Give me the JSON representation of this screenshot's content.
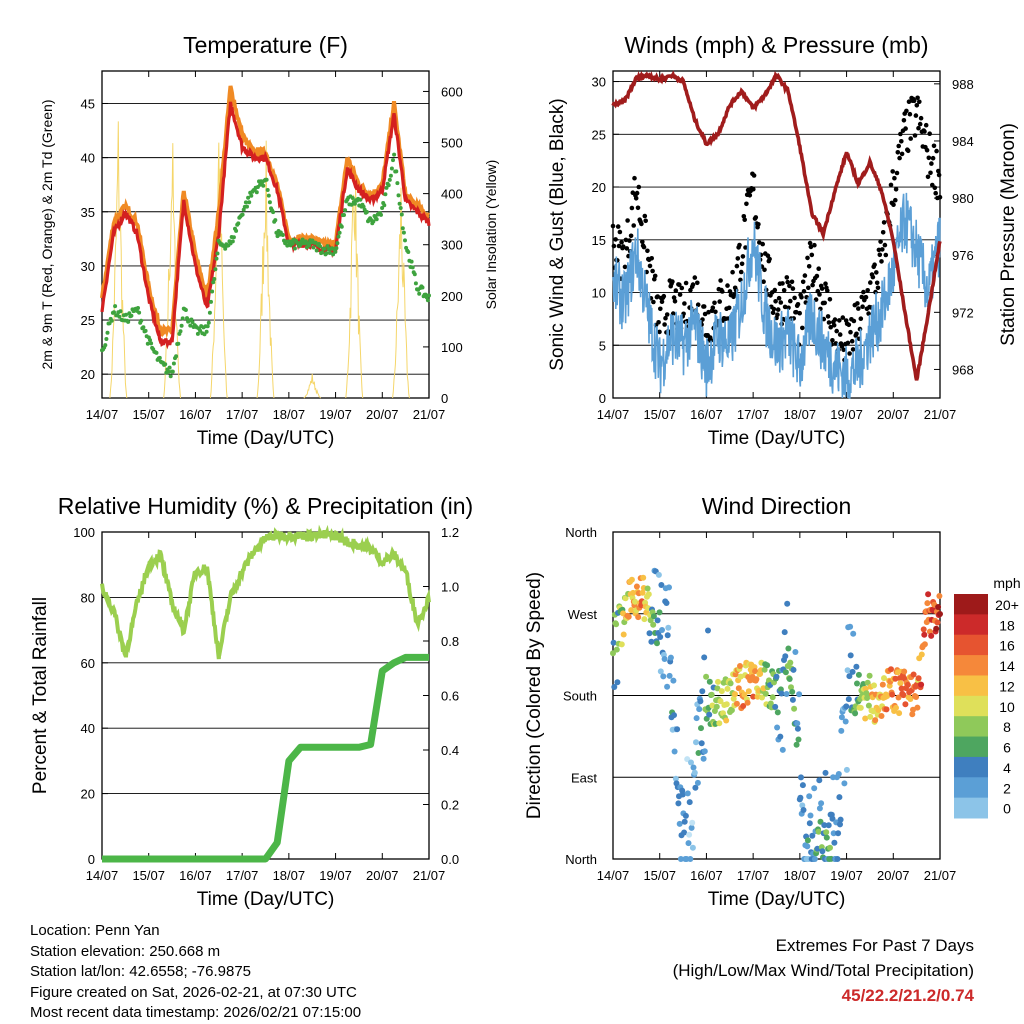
{
  "x_ticks": [
    "14/07",
    "15/07",
    "16/07",
    "17/07",
    "18/07",
    "19/07",
    "20/07",
    "21/07"
  ],
  "charts": {
    "temperature": {
      "title": "Temperature (F)",
      "xlabel": "Time (Day/UTC)",
      "ylabel_left": "2m & 9m T (Red, Orange) & 2m Td (Green)",
      "ylabel_right": "Solar Insolation (Yellow)",
      "left_ticks": [
        "20",
        "25",
        "30",
        "35",
        "40",
        "45"
      ],
      "right_ticks": [
        "0",
        "100",
        "200",
        "300",
        "400",
        "500",
        "600"
      ]
    },
    "winds": {
      "title": "Winds (mph) & Pressure (mb)",
      "xlabel": "Time (Day/UTC)",
      "ylabel_left": "Sonic Wind & Gust (Blue, Black)",
      "ylabel_right": "Station Pressure (Maroon)",
      "left_ticks": [
        "0",
        "5",
        "10",
        "15",
        "20",
        "25",
        "30"
      ],
      "right_ticks": [
        "968",
        "972",
        "976",
        "980",
        "984",
        "988"
      ]
    },
    "humidity": {
      "title": "Relative Humidity (%) & Precipitation (in)",
      "xlabel": "Time (Day/UTC)",
      "ylabel_left": "Percent & Total Rainfall",
      "left_ticks": [
        "0",
        "20",
        "40",
        "60",
        "80",
        "100"
      ],
      "right_ticks": [
        "0.0",
        "0.2",
        "0.4",
        "0.6",
        "0.8",
        "1.0",
        "1.2"
      ]
    },
    "direction": {
      "title": "Wind Direction",
      "xlabel": "Time (Day/UTC)",
      "ylabel_left": "Direction (Colored By Speed)",
      "dir_ticks": [
        "North",
        "East",
        "South",
        "West",
        "North"
      ],
      "legend_title": "mph",
      "legend_labels": [
        "20+",
        "18",
        "16",
        "14",
        "12",
        "10",
        "8",
        "6",
        "4",
        "2",
        "0"
      ]
    }
  },
  "colors": {
    "temp_2m": "#d42020",
    "temp_9m": "#f08a24",
    "dewpoint": "#3ea33e",
    "solar": "#f5d66a",
    "wind": "#5b9fd6",
    "gust": "#000000",
    "pressure": "#a01c1c",
    "rh": "#9bcf4f",
    "rain": "#4cb648",
    "extremes": "#cc2a2a",
    "speed_scale": [
      "#c2e3f5",
      "#8cc4e8",
      "#5b9fd6",
      "#3f7fbf",
      "#4ea660",
      "#8fc95a",
      "#dfe05a",
      "#f8c045",
      "#f5883a",
      "#e65430",
      "#cc2a2a",
      "#9e1a1a"
    ]
  },
  "footer": {
    "location": "Location: Penn Yan",
    "elevation": "Station elevation: 250.668 m",
    "latlon": "Station lat/lon: 42.6558; -76.9875",
    "created": "Figure created on Sat, 2026-02-21, at 07:30 UTC",
    "recent": "Most recent data timestamp: 2026/02/21 07:15:00",
    "extremes_title": "Extremes For Past 7 Days",
    "extremes_sub": "(High/Low/Max Wind/Total Precipitation)",
    "extremes_values": "45/22.2/21.2/0.74"
  },
  "chart_data": [
    {
      "type": "line",
      "title": "Temperature (F)",
      "xlabel": "Time (Day/UTC)",
      "ylabel": "2m & 9m T (Red, Orange) & 2m Td (Green)",
      "y2label": "Solar Insolation (Yellow)",
      "xlim": [
        0,
        7
      ],
      "ylim": [
        17.8,
        48
      ],
      "y2lim": [
        0,
        640
      ],
      "x": [
        0.0,
        0.25,
        0.5,
        0.75,
        1.0,
        1.25,
        1.5,
        1.75,
        2.0,
        2.25,
        2.5,
        2.75,
        3.0,
        3.25,
        3.5,
        3.75,
        4.0,
        4.25,
        4.5,
        4.75,
        5.0,
        5.25,
        5.5,
        5.75,
        6.0,
        6.25,
        6.5,
        6.75,
        7.0
      ],
      "series": [
        {
          "name": "2m T",
          "values": [
            26,
            33,
            35,
            33,
            27,
            23,
            23,
            36,
            30,
            26,
            33,
            45,
            41,
            40,
            40,
            37,
            32,
            32,
            32,
            31.5,
            31.5,
            39,
            37,
            36,
            37,
            44,
            36,
            35,
            34
          ]
        },
        {
          "name": "9m T",
          "values": [
            27,
            34,
            35.5,
            34,
            28,
            24,
            24,
            37,
            31,
            27,
            35,
            46.5,
            42,
            40.5,
            40.5,
            37.5,
            32.5,
            32.5,
            32.5,
            32,
            32,
            40,
            37.5,
            36.5,
            37.5,
            45,
            36.5,
            35.5,
            34.5
          ]
        },
        {
          "name": "2m Td",
          "values": [
            22,
            26,
            25,
            26,
            23,
            21,
            20,
            26,
            24,
            24,
            32,
            32,
            35,
            37,
            38,
            33,
            32,
            32,
            32,
            31.5,
            31.5,
            36,
            36,
            34,
            35,
            40,
            32,
            28,
            27
          ]
        },
        {
          "name": "Solar Insolation",
          "axis": "right",
          "peaks": [
            {
              "x": 0.35,
              "value": 590
            },
            {
              "x": 1.5,
              "value": 580
            },
            {
              "x": 2.5,
              "value": 605
            },
            {
              "x": 3.5,
              "value": 570
            },
            {
              "x": 4.5,
              "value": 50
            },
            {
              "x": 5.4,
              "value": 580
            },
            {
              "x": 6.4,
              "value": 470
            }
          ]
        }
      ]
    },
    {
      "type": "line",
      "title": "Winds (mph) & Pressure (mb)",
      "xlabel": "Time (Day/UTC)",
      "ylabel": "Sonic Wind & Gust (Blue, Black)",
      "y2label": "Station Pressure (Maroon)",
      "xlim": [
        0,
        7
      ],
      "ylim": [
        0,
        31
      ],
      "y2lim": [
        966,
        988.9
      ],
      "x": [
        0.0,
        0.25,
        0.5,
        0.75,
        1.0,
        1.25,
        1.5,
        1.75,
        2.0,
        2.25,
        2.5,
        2.75,
        3.0,
        3.25,
        3.5,
        3.75,
        4.0,
        4.25,
        4.5,
        4.75,
        5.0,
        5.25,
        5.5,
        5.75,
        6.0,
        6.25,
        6.5,
        6.75,
        7.0
      ],
      "series": [
        {
          "name": "Sonic Wind",
          "values": [
            11,
            9,
            14,
            8,
            3,
            6,
            5,
            7,
            3,
            6,
            5,
            9,
            15,
            8,
            5,
            6,
            3,
            8,
            5,
            3,
            2,
            3,
            6,
            8,
            12,
            17,
            14,
            10,
            15
          ]
        },
        {
          "name": "Gust",
          "values": [
            14,
            12,
            19,
            12,
            6,
            8,
            7,
            9,
            6,
            8,
            8,
            13,
            19,
            11,
            8,
            9,
            6,
            12,
            9,
            5,
            4,
            6,
            9,
            12,
            19,
            24,
            26,
            22,
            20
          ]
        },
        {
          "name": "Station Pressure",
          "axis": "right",
          "values": [
            986.5,
            986.8,
            988.4,
            988.6,
            988.3,
            988.6,
            988.2,
            985.5,
            983.8,
            984.5,
            986.5,
            987.5,
            986.3,
            987.2,
            988.6,
            987.5,
            983.6,
            979,
            977.5,
            980.5,
            983.2,
            981,
            982.5,
            980.5,
            977,
            972,
            967.2,
            972,
            977
          ]
        }
      ]
    },
    {
      "type": "line",
      "title": "Relative Humidity (%) & Precipitation (in)",
      "xlabel": "Time (Day/UTC)",
      "ylabel": "Percent & Total Rainfall",
      "xlim": [
        0,
        7
      ],
      "ylim": [
        0,
        100
      ],
      "y2lim": [
        0,
        1.2
      ],
      "x": [
        0.0,
        0.25,
        0.5,
        0.75,
        1.0,
        1.25,
        1.5,
        1.75,
        2.0,
        2.25,
        2.5,
        2.75,
        3.0,
        3.25,
        3.5,
        3.75,
        4.0,
        4.25,
        4.5,
        4.75,
        5.0,
        5.25,
        5.5,
        5.75,
        6.0,
        6.25,
        6.5,
        6.75,
        7.0
      ],
      "series": [
        {
          "name": "Relative Humidity",
          "values": [
            83,
            76,
            62,
            78,
            90,
            93,
            78,
            70,
            88,
            89,
            62,
            80,
            88,
            94,
            98,
            99,
            99,
            99,
            99,
            99,
            99,
            97,
            96,
            95,
            91,
            93,
            88,
            72,
            80
          ]
        },
        {
          "name": "Total Precipitation",
          "axis": "right",
          "values": [
            0,
            0,
            0,
            0,
            0,
            0,
            0,
            0,
            0,
            0,
            0,
            0,
            0,
            0,
            0,
            0.06,
            0.36,
            0.41,
            0.41,
            0.41,
            0.41,
            0.41,
            0.41,
            0.42,
            0.69,
            0.72,
            0.74,
            0.74,
            0.74
          ]
        }
      ]
    },
    {
      "type": "scatter",
      "title": "Wind Direction",
      "xlabel": "Time (Day/UTC)",
      "ylabel": "Direction (Colored By Speed)",
      "xlim": [
        0,
        7
      ],
      "ylim": [
        0,
        360
      ],
      "y_ticks": [
        "North",
        "East",
        "South",
        "West",
        "North"
      ],
      "legend": {
        "title": "mph",
        "levels": [
          "0",
          "2",
          "4",
          "6",
          "8",
          "10",
          "12",
          "14",
          "16",
          "18",
          "20+"
        ]
      },
      "x": [
        0.1,
        0.35,
        0.6,
        0.9,
        1.15,
        1.4,
        1.7,
        1.9,
        2.15,
        2.45,
        2.75,
        3.0,
        3.3,
        3.55,
        3.8,
        4.05,
        4.3,
        4.55,
        4.8,
        5.05,
        5.3,
        5.6,
        5.9,
        6.2,
        6.5,
        6.75,
        6.95
      ],
      "series": [
        {
          "name": "Direction",
          "values": [
            250,
            280,
            295,
            255,
            260,
            60,
            25,
            180,
            170,
            175,
            190,
            200,
            190,
            185,
            220,
            60,
            20,
            15,
            10,
            190,
            180,
            175,
            185,
            185,
            180,
            270,
            265
          ]
        },
        {
          "name": "Speed",
          "values": [
            8,
            14,
            15,
            6,
            4,
            5,
            3,
            6,
            9,
            12,
            14,
            16,
            10,
            6,
            8,
            4,
            6,
            8,
            4,
            5,
            10,
            14,
            16,
            17,
            15,
            18,
            19
          ]
        }
      ]
    }
  ]
}
